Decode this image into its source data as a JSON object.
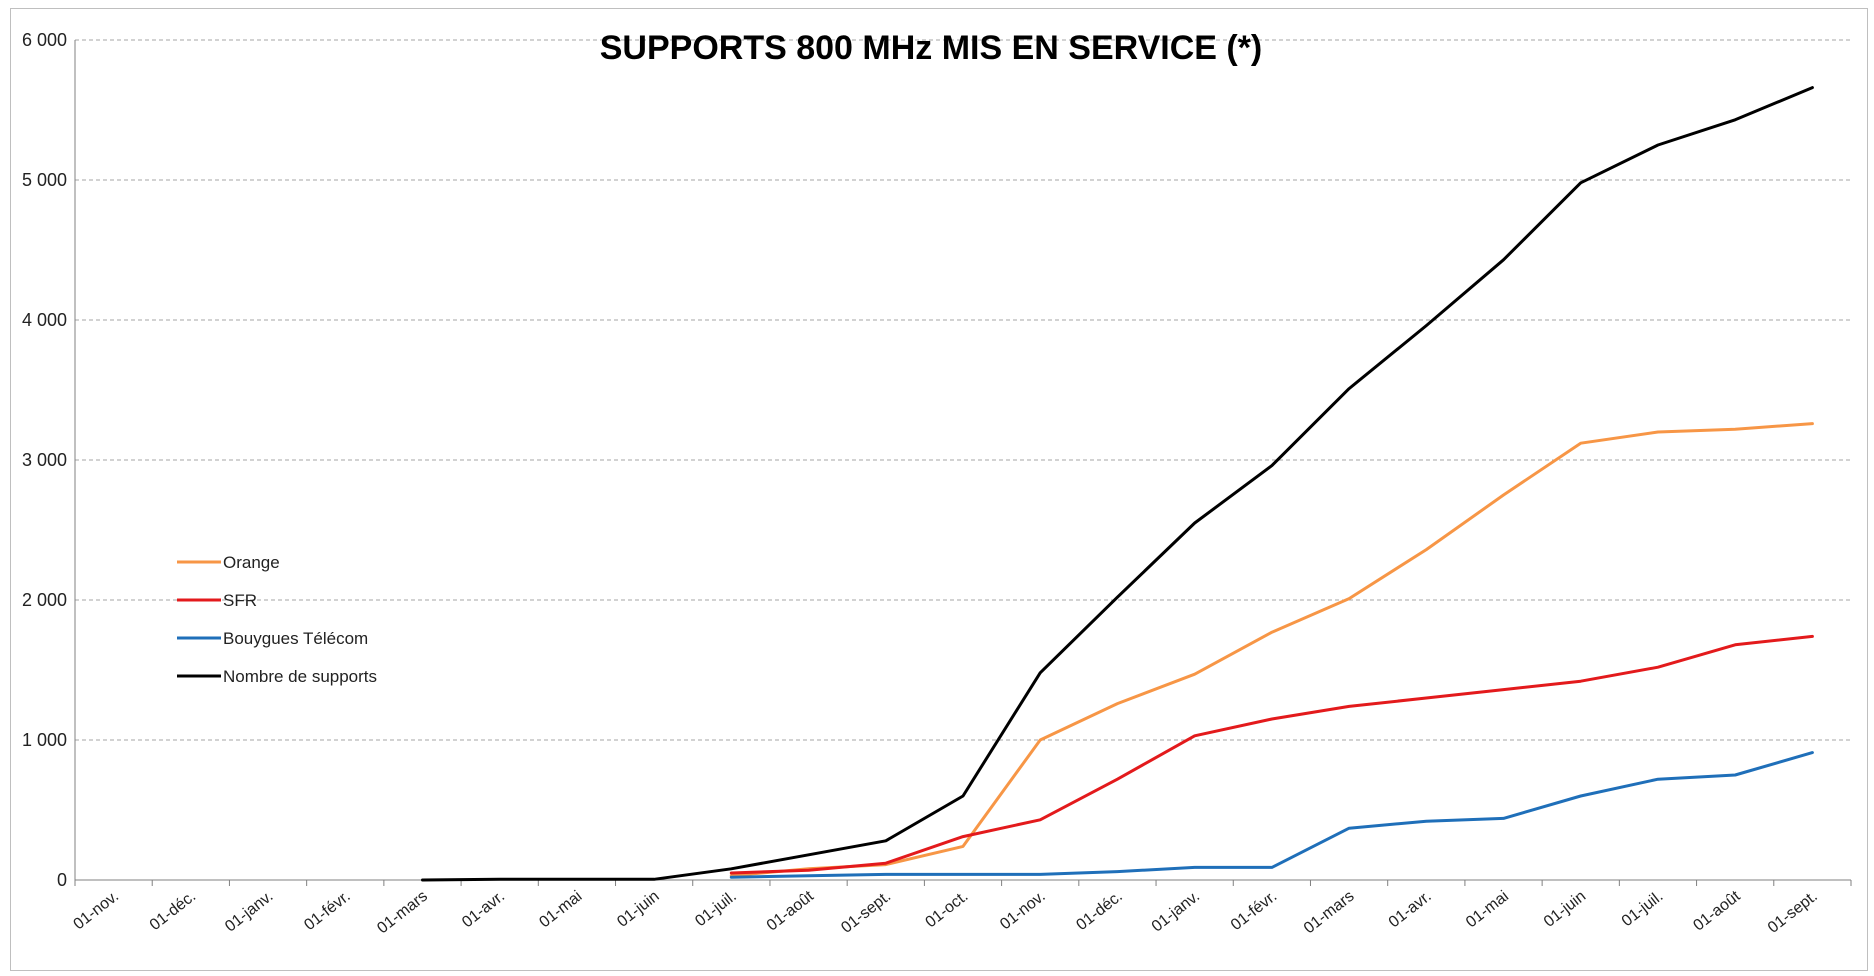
{
  "chart_data": {
    "type": "line",
    "title": "SUPPORTS 800 MHz MIS EN SERVICE (*)",
    "xlabel": "",
    "ylabel": "",
    "categories": [
      "01-nov.",
      "01-déc.",
      "01-janv.",
      "01-févr.",
      "01-mars",
      "01-avr.",
      "01-mai",
      "01-juin",
      "01-juil.",
      "01-août",
      "01-sept.",
      "01-oct.",
      "01-nov.",
      "01-déc.",
      "01-janv.",
      "01-févr.",
      "01-mars",
      "01-avr.",
      "01-mai",
      "01-juin",
      "01-juil.",
      "01-août",
      "01-sept."
    ],
    "ylim": [
      0,
      6000
    ],
    "yticks": [
      0,
      1000,
      2000,
      3000,
      4000,
      5000,
      6000
    ],
    "ytick_labels": [
      "0",
      "1 000",
      "2 000",
      "3 000",
      "4 000",
      "5 000",
      "6 000"
    ],
    "grid": true,
    "legend_position": "left",
    "series": [
      {
        "name": "Orange",
        "color": "#f79646",
        "values": [
          null,
          null,
          null,
          null,
          null,
          null,
          null,
          null,
          30,
          80,
          110,
          240,
          1000,
          1260,
          1470,
          1770,
          2010,
          2360,
          2750,
          3120,
          3200,
          3220,
          3260
        ]
      },
      {
        "name": "SFR",
        "color": "#e31a1c",
        "values": [
          null,
          null,
          null,
          null,
          null,
          null,
          null,
          null,
          50,
          70,
          120,
          310,
          430,
          720,
          1030,
          1150,
          1240,
          1300,
          1360,
          1420,
          1520,
          1680,
          1740
        ]
      },
      {
        "name": "Bouygues Télécom",
        "color": "#1f6fb9",
        "values": [
          null,
          null,
          null,
          null,
          null,
          null,
          null,
          null,
          20,
          30,
          40,
          40,
          40,
          60,
          90,
          90,
          370,
          420,
          440,
          600,
          720,
          750,
          910
        ]
      },
      {
        "name": "Nombre de supports",
        "color": "#000000",
        "values": [
          null,
          null,
          null,
          null,
          0,
          5,
          5,
          5,
          80,
          180,
          280,
          600,
          1480,
          2020,
          2550,
          2960,
          3510,
          3960,
          4430,
          4980,
          5250,
          5430,
          5660
        ]
      }
    ]
  }
}
